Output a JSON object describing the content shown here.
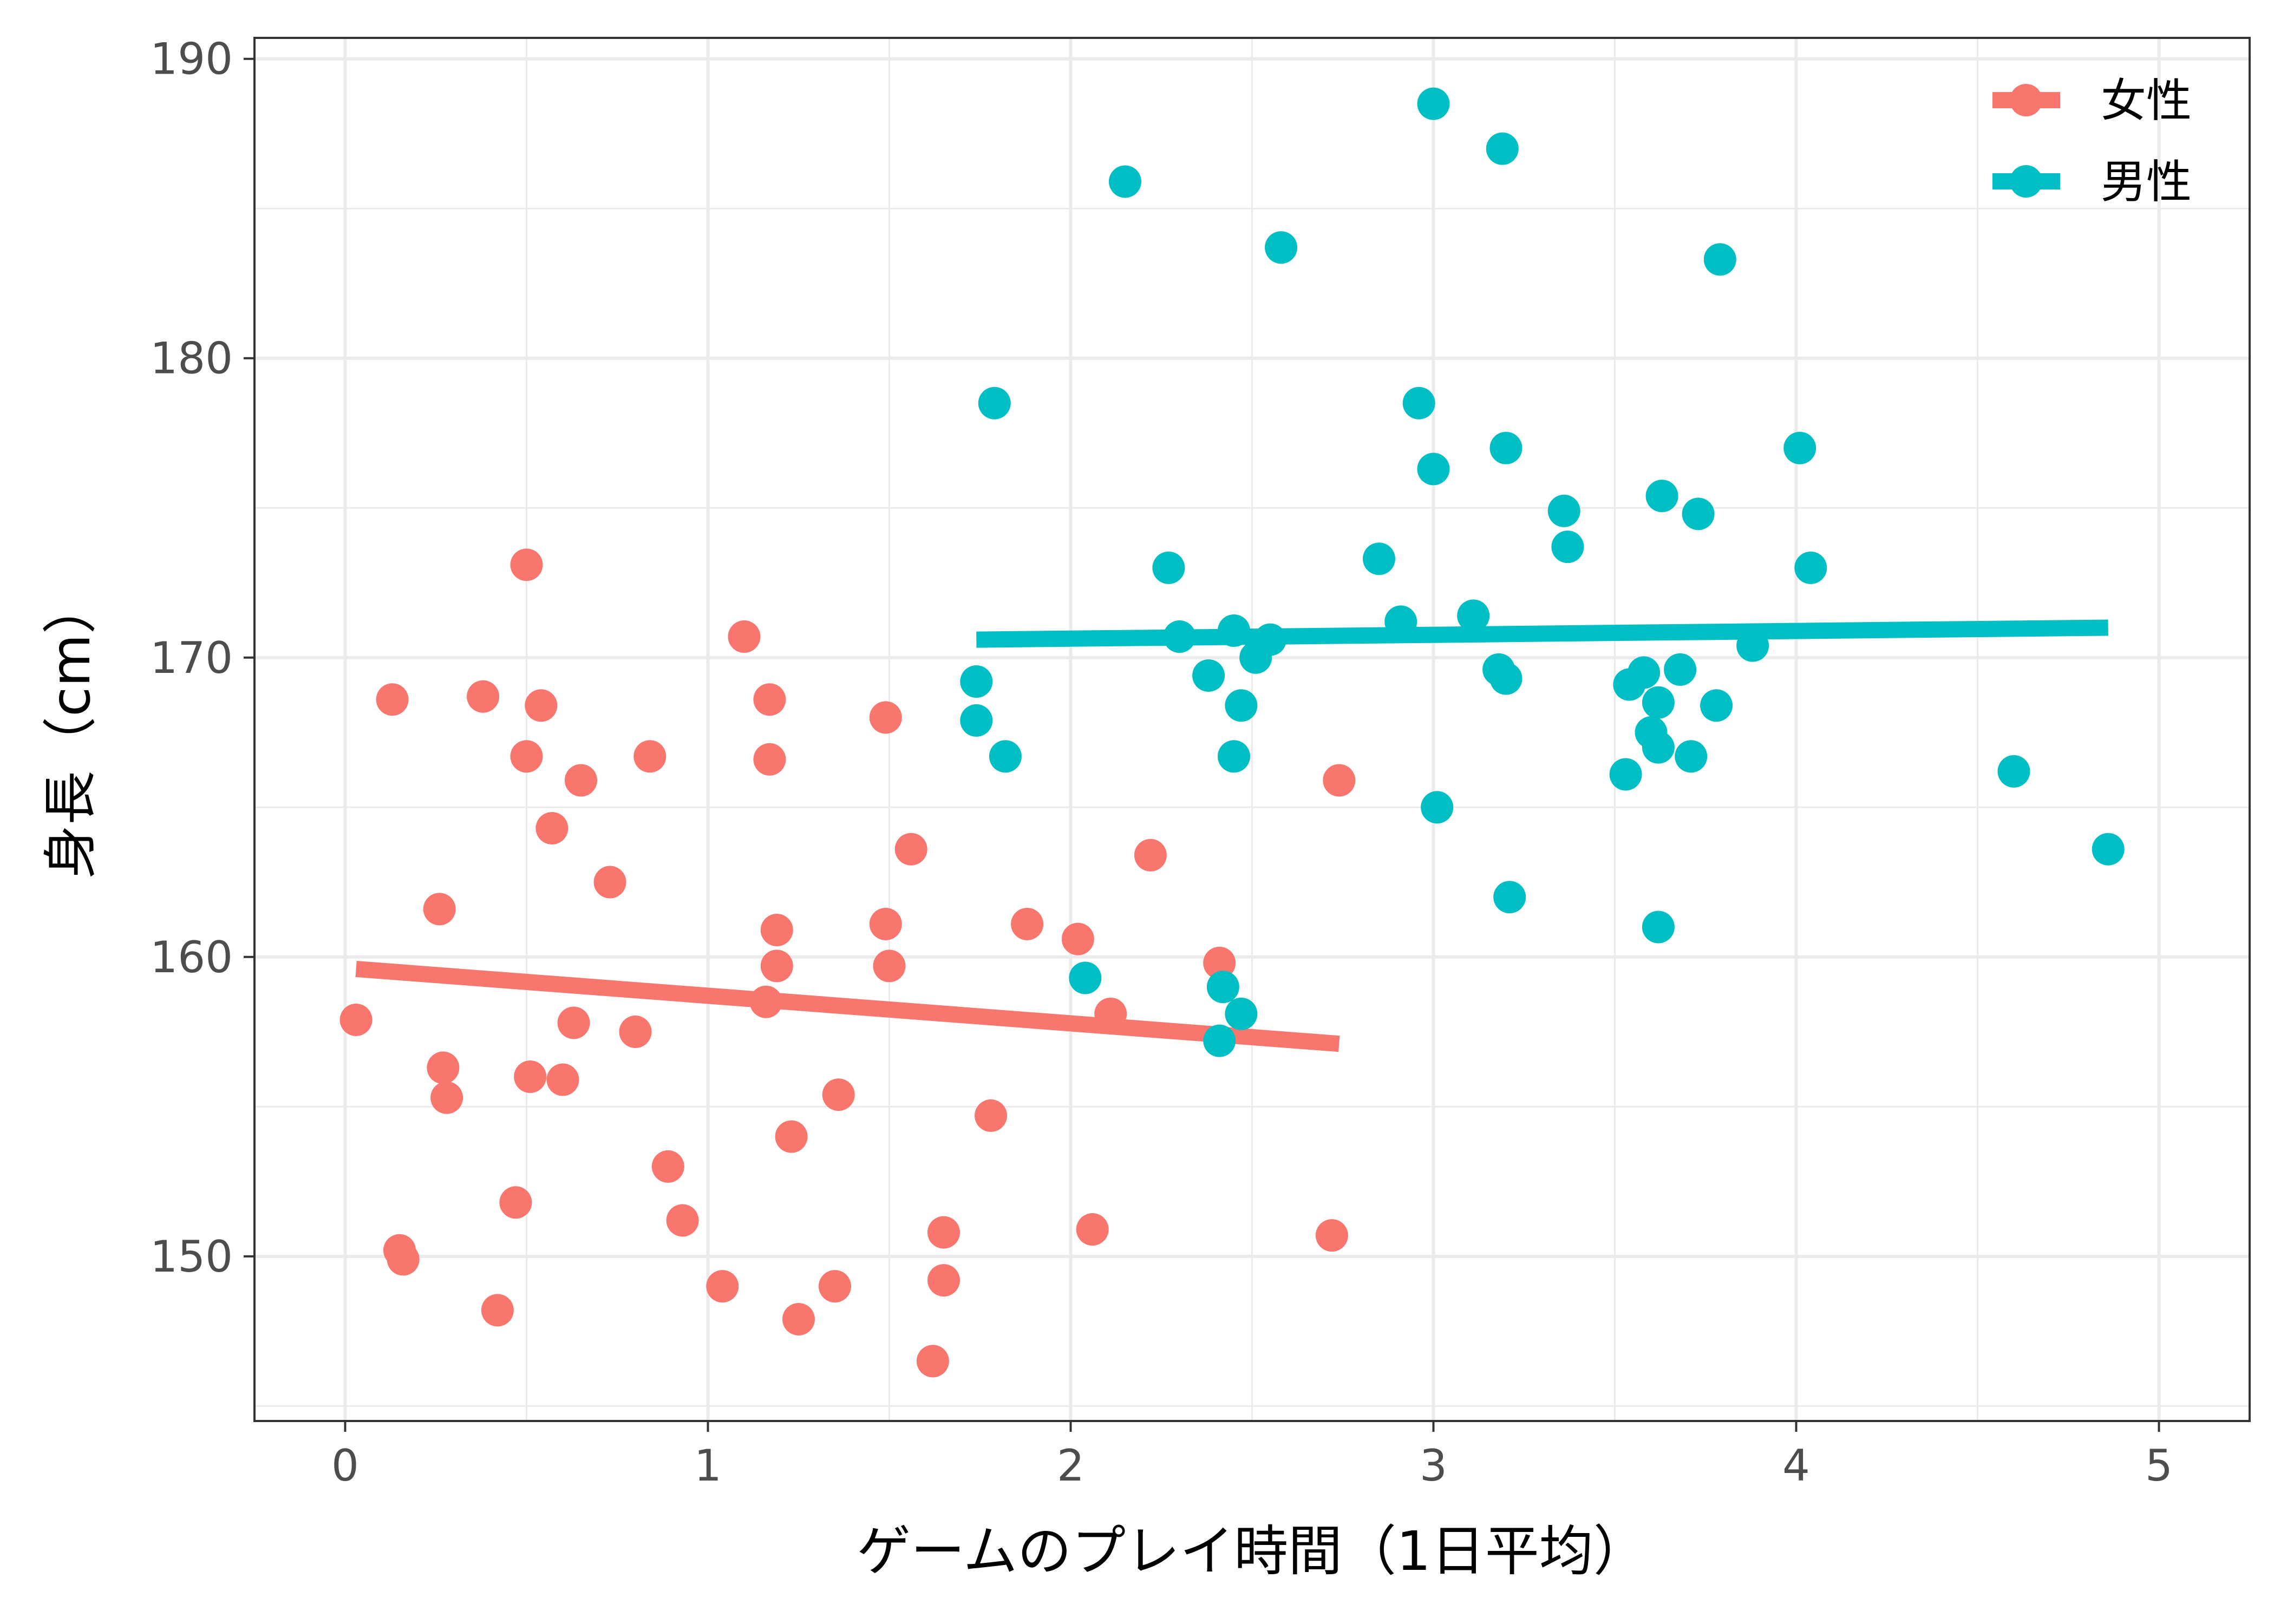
{
  "chart_data": {
    "type": "scatter",
    "xlabel": "ゲームのプレイ時間（1日平均）",
    "ylabel": "身長（cm）",
    "xlim": [
      -0.25,
      5.25
    ],
    "ylim": [
      144.5,
      190.7
    ],
    "x_ticks": [
      0,
      1,
      2,
      3,
      4,
      5
    ],
    "y_ticks": [
      150,
      160,
      170,
      180,
      190
    ],
    "x_tick_labels": [
      "0",
      "1",
      "2",
      "3",
      "4",
      "5"
    ],
    "y_tick_labels": [
      "150",
      "160",
      "170",
      "180",
      "190"
    ],
    "grid": true,
    "legend_position": "top-right",
    "series": [
      {
        "name": "女性",
        "color": "#F8766D",
        "points": [
          [
            0.03,
            157.9
          ],
          [
            0.13,
            168.6
          ],
          [
            0.15,
            150.2
          ],
          [
            0.16,
            149.9
          ],
          [
            0.26,
            161.6
          ],
          [
            0.27,
            156.3
          ],
          [
            0.28,
            155.3
          ],
          [
            0.38,
            168.7
          ],
          [
            0.42,
            148.2
          ],
          [
            0.47,
            151.8
          ],
          [
            0.5,
            173.1
          ],
          [
            0.5,
            166.7
          ],
          [
            0.51,
            156.0
          ],
          [
            0.54,
            168.4
          ],
          [
            0.57,
            164.3
          ],
          [
            0.6,
            155.9
          ],
          [
            0.63,
            157.8
          ],
          [
            0.65,
            165.9
          ],
          [
            0.73,
            162.5
          ],
          [
            0.8,
            157.5
          ],
          [
            0.84,
            166.7
          ],
          [
            0.89,
            153.0
          ],
          [
            0.93,
            151.2
          ],
          [
            1.04,
            149.0
          ],
          [
            1.1,
            170.7
          ],
          [
            1.16,
            158.5
          ],
          [
            1.17,
            168.6
          ],
          [
            1.17,
            166.6
          ],
          [
            1.19,
            160.9
          ],
          [
            1.19,
            159.7
          ],
          [
            1.23,
            154.0
          ],
          [
            1.25,
            147.9
          ],
          [
            1.35,
            149.0
          ],
          [
            1.36,
            155.4
          ],
          [
            1.49,
            168.0
          ],
          [
            1.49,
            161.1
          ],
          [
            1.5,
            159.7
          ],
          [
            1.56,
            163.6
          ],
          [
            1.62,
            146.5
          ],
          [
            1.65,
            150.8
          ],
          [
            1.65,
            149.2
          ],
          [
            1.78,
            154.7
          ],
          [
            1.88,
            161.1
          ],
          [
            2.02,
            160.6
          ],
          [
            2.06,
            150.9
          ],
          [
            2.11,
            158.1
          ],
          [
            2.22,
            163.4
          ],
          [
            2.41,
            159.8
          ],
          [
            2.72,
            150.7
          ],
          [
            2.74,
            165.9
          ]
        ],
        "trend": {
          "x": [
            0.03,
            2.74
          ],
          "y": [
            159.6,
            157.1
          ]
        }
      },
      {
        "name": "男性",
        "color": "#00BFC4",
        "points": [
          [
            1.74,
            169.2
          ],
          [
            1.74,
            167.9
          ],
          [
            1.79,
            178.5
          ],
          [
            1.82,
            166.7
          ],
          [
            2.04,
            159.3
          ],
          [
            2.15,
            185.9
          ],
          [
            2.27,
            173.0
          ],
          [
            2.3,
            170.7
          ],
          [
            2.38,
            169.4
          ],
          [
            2.41,
            157.2
          ],
          [
            2.42,
            159.0
          ],
          [
            2.45,
            170.9
          ],
          [
            2.45,
            166.7
          ],
          [
            2.47,
            168.4
          ],
          [
            2.47,
            158.1
          ],
          [
            2.51,
            170.0
          ],
          [
            2.55,
            170.6
          ],
          [
            2.58,
            183.7
          ],
          [
            2.85,
            173.3
          ],
          [
            2.91,
            171.2
          ],
          [
            2.96,
            178.5
          ],
          [
            3.0,
            176.3
          ],
          [
            3.0,
            188.5
          ],
          [
            3.01,
            165.0
          ],
          [
            3.11,
            171.4
          ],
          [
            3.18,
            169.6
          ],
          [
            3.19,
            187.0
          ],
          [
            3.2,
            177.0
          ],
          [
            3.2,
            169.3
          ],
          [
            3.21,
            162.0
          ],
          [
            3.36,
            174.9
          ],
          [
            3.37,
            173.7
          ],
          [
            3.53,
            166.1
          ],
          [
            3.54,
            169.1
          ],
          [
            3.58,
            169.5
          ],
          [
            3.6,
            167.5
          ],
          [
            3.62,
            168.5
          ],
          [
            3.62,
            167.0
          ],
          [
            3.62,
            161.0
          ],
          [
            3.63,
            175.4
          ],
          [
            3.68,
            169.6
          ],
          [
            3.71,
            166.7
          ],
          [
            3.73,
            174.8
          ],
          [
            3.78,
            168.4
          ],
          [
            3.79,
            183.3
          ],
          [
            3.88,
            170.4
          ],
          [
            4.01,
            177.0
          ],
          [
            4.04,
            173.0
          ],
          [
            4.6,
            166.2
          ],
          [
            4.86,
            163.6
          ]
        ],
        "trend": {
          "x": [
            1.74,
            4.86
          ],
          "y": [
            170.6,
            171.0
          ]
        }
      }
    ]
  }
}
